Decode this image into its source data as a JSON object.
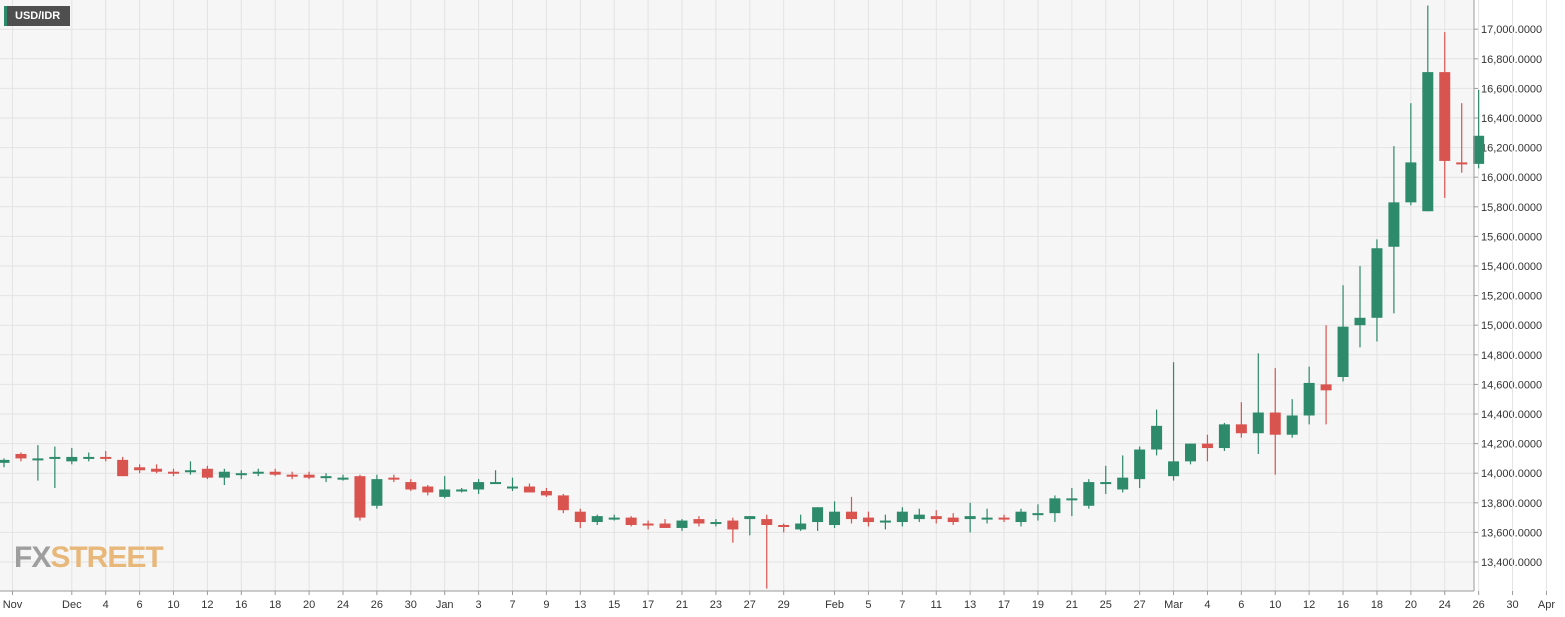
{
  "symbol": "USD/IDR",
  "logo": {
    "part1": "FX",
    "part2": "STREET"
  },
  "colors": {
    "up": "#2d8a6b",
    "down": "#d9534f",
    "grid": "#e3e3e3",
    "background": "#f6f6f6"
  },
  "chart_data": {
    "type": "candlestick",
    "title": "",
    "ylim": [
      13200,
      17200
    ],
    "y_ticks": [
      "13,400.0000",
      "13,600.0000",
      "13,800.0000",
      "14,000.0000",
      "14,200.0000",
      "14,400.0000",
      "14,600.0000",
      "14,800.0000",
      "15,000.0000",
      "15,200.0000",
      "15,400.0000",
      "15,600.0000",
      "15,800.0000",
      "16,000.0000",
      "16,200.0000",
      "16,400.0000",
      "16,600.0000",
      "16,800.0000",
      "17,000.0000"
    ],
    "y_tick_values": [
      13400,
      13600,
      13800,
      14000,
      14200,
      14400,
      14600,
      14800,
      15000,
      15200,
      15400,
      15600,
      15800,
      16000,
      16200,
      16400,
      16600,
      16800,
      17000
    ],
    "x_ticks": [
      {
        "label": "Nov",
        "i": 0.5
      },
      {
        "label": "Dec",
        "i": 4
      },
      {
        "label": "4",
        "i": 6
      },
      {
        "label": "6",
        "i": 8
      },
      {
        "label": "10",
        "i": 10
      },
      {
        "label": "12",
        "i": 12
      },
      {
        "label": "16",
        "i": 14
      },
      {
        "label": "18",
        "i": 16
      },
      {
        "label": "20",
        "i": 18
      },
      {
        "label": "24",
        "i": 20
      },
      {
        "label": "26",
        "i": 22
      },
      {
        "label": "30",
        "i": 24
      },
      {
        "label": "Jan",
        "i": 26
      },
      {
        "label": "3",
        "i": 28
      },
      {
        "label": "7",
        "i": 30
      },
      {
        "label": "9",
        "i": 32
      },
      {
        "label": "13",
        "i": 34
      },
      {
        "label": "15",
        "i": 36
      },
      {
        "label": "17",
        "i": 38
      },
      {
        "label": "21",
        "i": 40
      },
      {
        "label": "23",
        "i": 42
      },
      {
        "label": "27",
        "i": 44
      },
      {
        "label": "29",
        "i": 46
      },
      {
        "label": "Feb",
        "i": 49
      },
      {
        "label": "5",
        "i": 51
      },
      {
        "label": "7",
        "i": 53
      },
      {
        "label": "11",
        "i": 55
      },
      {
        "label": "13",
        "i": 57
      },
      {
        "label": "17",
        "i": 59
      },
      {
        "label": "19",
        "i": 61
      },
      {
        "label": "21",
        "i": 63
      },
      {
        "label": "25",
        "i": 65
      },
      {
        "label": "27",
        "i": 67
      },
      {
        "label": "Mar",
        "i": 69
      },
      {
        "label": "4",
        "i": 71
      },
      {
        "label": "6",
        "i": 73
      },
      {
        "label": "10",
        "i": 75
      },
      {
        "label": "12",
        "i": 77
      },
      {
        "label": "16",
        "i": 79
      },
      {
        "label": "18",
        "i": 81
      },
      {
        "label": "20",
        "i": 83
      },
      {
        "label": "24",
        "i": 85
      },
      {
        "label": "26",
        "i": 87
      },
      {
        "label": "30",
        "i": 89
      },
      {
        "label": "Apr",
        "i": 91
      }
    ],
    "candles": [
      {
        "o": 14070,
        "h": 14100,
        "l": 14040,
        "c": 14090
      },
      {
        "o": 14130,
        "h": 14140,
        "l": 14080,
        "c": 14100
      },
      {
        "o": 14100,
        "h": 14190,
        "l": 13950,
        "c": 14100
      },
      {
        "o": 14100,
        "h": 14180,
        "l": 13900,
        "c": 14110
      },
      {
        "o": 14080,
        "h": 14170,
        "l": 14060,
        "c": 14110
      },
      {
        "o": 14110,
        "h": 14140,
        "l": 14080,
        "c": 14110
      },
      {
        "o": 14110,
        "h": 14150,
        "l": 14080,
        "c": 14100
      },
      {
        "o": 14090,
        "h": 14110,
        "l": 13980,
        "c": 13980
      },
      {
        "o": 14040,
        "h": 14060,
        "l": 14000,
        "c": 14020
      },
      {
        "o": 14030,
        "h": 14060,
        "l": 14000,
        "c": 14010
      },
      {
        "o": 14010,
        "h": 14030,
        "l": 13980,
        "c": 14000
      },
      {
        "o": 14010,
        "h": 14080,
        "l": 13990,
        "c": 14020
      },
      {
        "o": 14030,
        "h": 14050,
        "l": 13960,
        "c": 13970
      },
      {
        "o": 13970,
        "h": 14030,
        "l": 13920,
        "c": 14010
      },
      {
        "o": 13990,
        "h": 14020,
        "l": 13960,
        "c": 14000
      },
      {
        "o": 14000,
        "h": 14030,
        "l": 13980,
        "c": 14010
      },
      {
        "o": 14010,
        "h": 14030,
        "l": 13980,
        "c": 13990
      },
      {
        "o": 13990,
        "h": 14010,
        "l": 13960,
        "c": 13980
      },
      {
        "o": 13990,
        "h": 14010,
        "l": 13960,
        "c": 13970
      },
      {
        "o": 13970,
        "h": 14000,
        "l": 13940,
        "c": 13980
      },
      {
        "o": 13970,
        "h": 13990,
        "l": 13950,
        "c": 13970
      },
      {
        "o": 13980,
        "h": 13990,
        "l": 13680,
        "c": 13700
      },
      {
        "o": 13780,
        "h": 13990,
        "l": 13760,
        "c": 13960
      },
      {
        "o": 13970,
        "h": 13990,
        "l": 13940,
        "c": 13960
      },
      {
        "o": 13940,
        "h": 13960,
        "l": 13880,
        "c": 13890
      },
      {
        "o": 13910,
        "h": 13920,
        "l": 13850,
        "c": 13870
      },
      {
        "o": 13840,
        "h": 13980,
        "l": 13830,
        "c": 13890
      },
      {
        "o": 13890,
        "h": 13900,
        "l": 13870,
        "c": 13890
      },
      {
        "o": 13890,
        "h": 13960,
        "l": 13860,
        "c": 13940
      },
      {
        "o": 13940,
        "h": 14020,
        "l": 13930,
        "c": 13940
      },
      {
        "o": 13900,
        "h": 13970,
        "l": 13880,
        "c": 13910
      },
      {
        "o": 13910,
        "h": 13930,
        "l": 13870,
        "c": 13870
      },
      {
        "o": 13880,
        "h": 13900,
        "l": 13840,
        "c": 13850
      },
      {
        "o": 13850,
        "h": 13860,
        "l": 13730,
        "c": 13750
      },
      {
        "o": 13740,
        "h": 13760,
        "l": 13630,
        "c": 13670
      },
      {
        "o": 13670,
        "h": 13720,
        "l": 13650,
        "c": 13710
      },
      {
        "o": 13700,
        "h": 13720,
        "l": 13680,
        "c": 13700
      },
      {
        "o": 13700,
        "h": 13710,
        "l": 13640,
        "c": 13650
      },
      {
        "o": 13660,
        "h": 13680,
        "l": 13620,
        "c": 13650
      },
      {
        "o": 13660,
        "h": 13690,
        "l": 13630,
        "c": 13630
      },
      {
        "o": 13630,
        "h": 13690,
        "l": 13610,
        "c": 13680
      },
      {
        "o": 13690,
        "h": 13710,
        "l": 13640,
        "c": 13660
      },
      {
        "o": 13670,
        "h": 13690,
        "l": 13640,
        "c": 13670
      },
      {
        "o": 13680,
        "h": 13700,
        "l": 13530,
        "c": 13620
      },
      {
        "o": 13690,
        "h": 13710,
        "l": 13580,
        "c": 13710
      },
      {
        "o": 13690,
        "h": 13720,
        "l": 13220,
        "c": 13650
      },
      {
        "o": 13650,
        "h": 13660,
        "l": 13600,
        "c": 13640
      },
      {
        "o": 13620,
        "h": 13720,
        "l": 13610,
        "c": 13660
      },
      {
        "o": 13670,
        "h": 13770,
        "l": 13610,
        "c": 13770
      },
      {
        "o": 13650,
        "h": 13810,
        "l": 13630,
        "c": 13740
      },
      {
        "o": 13740,
        "h": 13840,
        "l": 13660,
        "c": 13690
      },
      {
        "o": 13700,
        "h": 13740,
        "l": 13640,
        "c": 13670
      },
      {
        "o": 13670,
        "h": 13720,
        "l": 13620,
        "c": 13680
      },
      {
        "o": 13670,
        "h": 13770,
        "l": 13640,
        "c": 13740
      },
      {
        "o": 13690,
        "h": 13760,
        "l": 13670,
        "c": 13720
      },
      {
        "o": 13710,
        "h": 13750,
        "l": 13660,
        "c": 13690
      },
      {
        "o": 13700,
        "h": 13730,
        "l": 13650,
        "c": 13670
      },
      {
        "o": 13690,
        "h": 13800,
        "l": 13600,
        "c": 13710
      },
      {
        "o": 13700,
        "h": 13760,
        "l": 13660,
        "c": 13700
      },
      {
        "o": 13700,
        "h": 13720,
        "l": 13670,
        "c": 13690
      },
      {
        "o": 13670,
        "h": 13760,
        "l": 13640,
        "c": 13740
      },
      {
        "o": 13730,
        "h": 13790,
        "l": 13680,
        "c": 13730
      },
      {
        "o": 13730,
        "h": 13850,
        "l": 13670,
        "c": 13830
      },
      {
        "o": 13830,
        "h": 13900,
        "l": 13710,
        "c": 13830
      },
      {
        "o": 13780,
        "h": 13960,
        "l": 13760,
        "c": 13940
      },
      {
        "o": 13940,
        "h": 14050,
        "l": 13860,
        "c": 13940
      },
      {
        "o": 13890,
        "h": 14120,
        "l": 13870,
        "c": 13970
      },
      {
        "o": 13960,
        "h": 14180,
        "l": 13900,
        "c": 14160
      },
      {
        "o": 14160,
        "h": 14430,
        "l": 14120,
        "c": 14320
      },
      {
        "o": 13980,
        "h": 14750,
        "l": 13950,
        "c": 14080
      },
      {
        "o": 14080,
        "h": 14200,
        "l": 14060,
        "c": 14200
      },
      {
        "o": 14200,
        "h": 14260,
        "l": 14080,
        "c": 14170
      },
      {
        "o": 14170,
        "h": 14340,
        "l": 14150,
        "c": 14330
      },
      {
        "o": 14330,
        "h": 14480,
        "l": 14240,
        "c": 14270
      },
      {
        "o": 14270,
        "h": 14810,
        "l": 14130,
        "c": 14410
      },
      {
        "o": 14410,
        "h": 14710,
        "l": 13990,
        "c": 14260
      },
      {
        "o": 14260,
        "h": 14500,
        "l": 14240,
        "c": 14390
      },
      {
        "o": 14390,
        "h": 14720,
        "l": 14330,
        "c": 14610
      },
      {
        "o": 14600,
        "h": 15000,
        "l": 14330,
        "c": 14560
      },
      {
        "o": 14650,
        "h": 15270,
        "l": 14620,
        "c": 14990
      },
      {
        "o": 15000,
        "h": 15400,
        "l": 14850,
        "c": 15050
      },
      {
        "o": 15050,
        "h": 15580,
        "l": 14890,
        "c": 15520
      },
      {
        "o": 15530,
        "h": 16210,
        "l": 15080,
        "c": 15830
      },
      {
        "o": 15830,
        "h": 16500,
        "l": 15810,
        "c": 16100
      },
      {
        "o": 15770,
        "h": 17160,
        "l": 15770,
        "c": 16710
      },
      {
        "o": 16710,
        "h": 16980,
        "l": 15860,
        "c": 16110
      },
      {
        "o": 16100,
        "h": 16500,
        "l": 16030,
        "c": 16090
      },
      {
        "o": 16090,
        "h": 16590,
        "l": 16060,
        "c": 16280
      }
    ]
  }
}
